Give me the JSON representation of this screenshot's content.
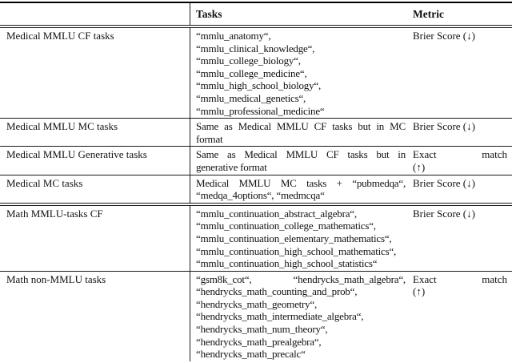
{
  "table": {
    "header": {
      "category_label": "",
      "tasks_label": "Tasks",
      "metric_label": "Metric"
    },
    "rows": [
      {
        "label": "Medical MMLU CF tasks",
        "task_lines": [
          "“mmlu_anatomy“,",
          "“mmlu_clinical_knowledge“,",
          "“mmlu_college_biology“,",
          "“mmlu_college_medicine“,",
          "“mmlu_high_school_biology“,",
          "“mmlu_medical_genetics“,",
          "“mmlu_professional_medicine“"
        ],
        "metric_lines": [
          "Brier Score (↓)"
        ]
      },
      {
        "label": "Medical MMLU MC tasks",
        "task_lines": [
          "Same as Medical MMLU CF tasks but in MC",
          "format"
        ],
        "metric_lines": [
          "Brier Score (↓)"
        ]
      },
      {
        "label": "Medical MMLU Generative tasks",
        "task_lines": [
          "Same as Medical MMLU CF tasks but in",
          "generative format"
        ],
        "metric_lines": [
          "Exact match",
          "(↑)"
        ]
      },
      {
        "label": "Medical MC tasks",
        "task_lines": [
          "Medical MMLU MC tasks + “pubmedqa“,",
          "“medqa_4options“, “medmcqa“"
        ],
        "metric_lines": [
          "Brier Score (↓)"
        ]
      },
      {
        "label": "Math MMLU-tasks CF",
        "task_lines": [
          "“mmlu_continuation_abstract_algebra“,",
          "“mmlu_continuation_college_mathematics“,",
          "“mmlu_continuation_elementary_mathematics“,",
          "“mmlu_continuation_high_school_mathematics“,",
          "“mmlu_continuation_high_school_statistics“"
        ],
        "metric_lines": [
          "Brier Score (↓)"
        ]
      },
      {
        "label": "Math non-MMLU tasks",
        "task_lines": [
          "“gsm8k_cot“, “hendrycks_math_algebra“,",
          "“hendrycks_math_counting_and_prob“,",
          "“hendrycks_math_geometry“,",
          "“hendrycks_math_intermediate_algebra“,",
          "“hendrycks_math_num_theory“,",
          "“hendrycks_math_prealgebra“,",
          "“hendrycks_math_precalc“"
        ],
        "metric_lines": [
          "Exact match",
          "(↑)"
        ]
      }
    ]
  },
  "colors": {
    "background": "#ffffff",
    "text": "#111111",
    "rule": "#1a1a1a",
    "thick_rule": "#000000"
  }
}
